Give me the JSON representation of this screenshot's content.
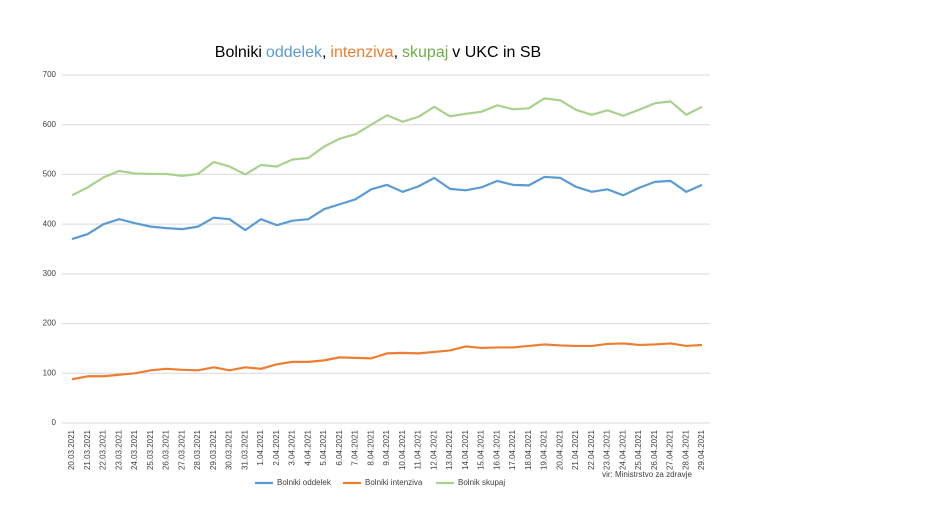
{
  "chart_data": {
    "type": "line",
    "title_parts": [
      {
        "text": "Bolniki",
        "color": "#000000"
      },
      {
        "text": "oddelek",
        "color": "#5b9bd5"
      },
      {
        "text": ",",
        "color": "#000000"
      },
      {
        "text": "intenziva",
        "color": "#ed7d31"
      },
      {
        "text": ",",
        "color": "#000000"
      },
      {
        "text": "skupaj",
        "color": "#70ad47"
      },
      {
        "text": "v UKC in SB",
        "color": "#000000"
      }
    ],
    "source": "vir: Ministrstvo za zdravje",
    "categories": [
      "20.03.2021",
      "21.03.2021",
      "22.03.2021",
      "23.03.2021",
      "24.03.2021",
      "25.03.2021",
      "26.03.2021",
      "27.03.2021",
      "28.03.2021",
      "29.03.2021",
      "30.03.2021",
      "31.03.2021",
      "1.04.2021",
      "2.04.2021",
      "3.04.2021",
      "4.04.2021",
      "5.04.2021",
      "6.04.2021",
      "7.04.2021",
      "8.04.2021",
      "9.04.2021",
      "10.04.2021",
      "11.04.2021",
      "12.04.2021",
      "13.04.2021",
      "14.04.2021",
      "15.04.2021",
      "16.04.2021",
      "17.04.2021",
      "18.04.2021",
      "19.04.2021",
      "20.04.2021",
      "21.04.2021",
      "22.04.2021",
      "23.04.2021",
      "24.04.2021",
      "25.04.2021",
      "26.04.2021",
      "27.04.2021",
      "28.04.2021",
      "29.04.2021"
    ],
    "series": [
      {
        "name": "Bolniki oddelek",
        "color": "#5b9bd5",
        "values": [
          370,
          380,
          400,
          410,
          402,
          395,
          392,
          390,
          395,
          413,
          410,
          388,
          410,
          398,
          407,
          410,
          430,
          440,
          450,
          470,
          479,
          465,
          476,
          493,
          471,
          468,
          474,
          487,
          479,
          478,
          495,
          493,
          475,
          465,
          470,
          458,
          473,
          485,
          487,
          465,
          479
        ]
      },
      {
        "name": "Bolniki intenziva",
        "color": "#ed7d31",
        "values": [
          88,
          94,
          94,
          97,
          100,
          106,
          109,
          107,
          106,
          112,
          106,
          112,
          109,
          118,
          123,
          123,
          126,
          132,
          131,
          130,
          140,
          141,
          140,
          143,
          146,
          154,
          151,
          152,
          152,
          155,
          158,
          156,
          155,
          155,
          159,
          160,
          157,
          158,
          160,
          155,
          157
        ]
      },
      {
        "name": "Bolnik skupaj",
        "color": "#a9d18e",
        "values": [
          458,
          474,
          494,
          507,
          502,
          501,
          501,
          497,
          501,
          525,
          516,
          500,
          519,
          516,
          530,
          533,
          556,
          572,
          581,
          600,
          619,
          606,
          616,
          636,
          617,
          622,
          626,
          639,
          631,
          633,
          653,
          649,
          630,
          620,
          629,
          618,
          630,
          643,
          647,
          620,
          636
        ]
      }
    ],
    "ylim": [
      0,
      700
    ],
    "yticks": [
      0,
      100,
      200,
      300,
      400,
      500,
      600,
      700
    ],
    "grid": true,
    "legend": "bottom"
  }
}
